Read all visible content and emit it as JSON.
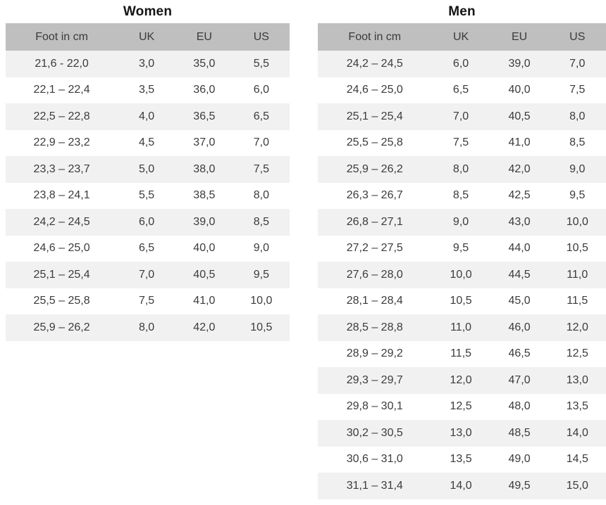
{
  "colors": {
    "page_background": "#ffffff",
    "header_bg": "#bfbfbf",
    "row_alt_bg": "#f1f1f1",
    "text": "#3b3b3b",
    "title_text": "#141414"
  },
  "women_table": {
    "title": "Women",
    "columns": [
      "Foot in cm",
      "UK",
      "EU",
      "US"
    ],
    "rows": [
      [
        "21,6 - 22,0",
        "3,0",
        "35,0",
        "5,5"
      ],
      [
        "22,1 – 22,4",
        "3,5",
        "36,0",
        "6,0"
      ],
      [
        "22,5 – 22,8",
        "4,0",
        "36,5",
        "6,5"
      ],
      [
        "22,9 – 23,2",
        "4,5",
        "37,0",
        "7,0"
      ],
      [
        "23,3 – 23,7",
        "5,0",
        "38,0",
        "7,5"
      ],
      [
        "23,8 – 24,1",
        "5,5",
        "38,5",
        "8,0"
      ],
      [
        "24,2 – 24,5",
        "6,0",
        "39,0",
        "8,5"
      ],
      [
        "24,6 – 25,0",
        "6,5",
        "40,0",
        "9,0"
      ],
      [
        "25,1 – 25,4",
        "7,0",
        "40,5",
        "9,5"
      ],
      [
        "25,5 – 25,8",
        "7,5",
        "41,0",
        "10,0"
      ],
      [
        "25,9 – 26,2",
        "8,0",
        "42,0",
        "10,5"
      ]
    ]
  },
  "men_table": {
    "title": "Men",
    "columns": [
      "Foot in cm",
      "UK",
      "EU",
      "US"
    ],
    "rows": [
      [
        "24,2 – 24,5",
        "6,0",
        "39,0",
        "7,0"
      ],
      [
        "24,6 – 25,0",
        "6,5",
        "40,0",
        "7,5"
      ],
      [
        "25,1 – 25,4",
        "7,0",
        "40,5",
        "8,0"
      ],
      [
        "25,5 – 25,8",
        "7,5",
        "41,0",
        "8,5"
      ],
      [
        "25,9 – 26,2",
        "8,0",
        "42,0",
        "9,0"
      ],
      [
        "26,3 – 26,7",
        "8,5",
        "42,5",
        "9,5"
      ],
      [
        "26,8 – 27,1",
        "9,0",
        "43,0",
        "10,0"
      ],
      [
        "27,2 – 27,5",
        "9,5",
        "44,0",
        "10,5"
      ],
      [
        "27,6 – 28,0",
        "10,0",
        "44,5",
        "11,0"
      ],
      [
        "28,1 – 28,4",
        "10,5",
        "45,0",
        "11,5"
      ],
      [
        "28,5 – 28,8",
        "11,0",
        "46,0",
        "12,0"
      ],
      [
        "28,9 – 29,2",
        "11,5",
        "46,5",
        "12,5"
      ],
      [
        "29,3 – 29,7",
        "12,0",
        "47,0",
        "13,0"
      ],
      [
        "29,8 – 30,1",
        "12,5",
        "48,0",
        "13,5"
      ],
      [
        "30,2 – 30,5",
        "13,0",
        "48,5",
        "14,0"
      ],
      [
        "30,6 – 31,0",
        "13,5",
        "49,0",
        "14,5"
      ],
      [
        "31,1 – 31,4",
        "14,0",
        "49,5",
        "15,0"
      ]
    ]
  }
}
